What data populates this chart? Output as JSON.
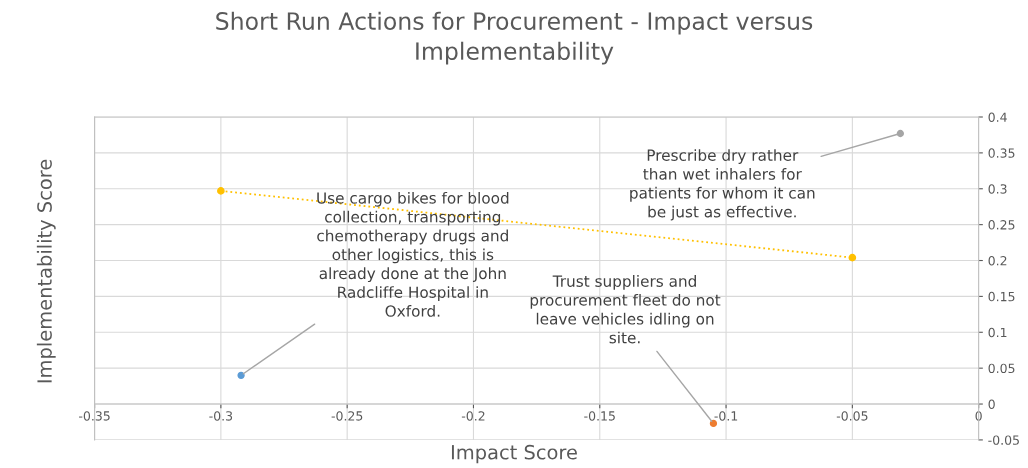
{
  "chart_data": {
    "type": "scatter",
    "title": "Short Run Actions for Procurement - Impact versus Implementability",
    "xlabel": "Impact Score",
    "ylabel": "Implementability Score",
    "series": [
      {
        "color": "#5b9bd5",
        "x": [
          -0.292
        ],
        "values": [
          0.04
        ]
      },
      {
        "color": "#ed7d31",
        "x": [
          -0.105
        ],
        "values": [
          -0.027
        ]
      },
      {
        "color": "#a5a5a5",
        "x": [
          -0.031
        ],
        "values": [
          0.377
        ]
      },
      {
        "type": "line",
        "color": "#ffc000",
        "x": [
          -0.3,
          -0.05
        ],
        "values": [
          0.297,
          0.204
        ],
        "line_style": "dotted"
      }
    ],
    "annotations": [
      {
        "text": "Use cargo bikes for blood collection, transporting chemotherapy drugs and other logistics, this is already done at the John Radcliffe Hospital in Oxford.",
        "x": -0.292,
        "y": 0.04
      },
      {
        "text": "Trust suppliers and procurement fleet do not leave vehicles idling on site.",
        "x": -0.105,
        "y": -0.027
      },
      {
        "text": "Prescribe dry rather than wet inhalers for patients for whom it can be just as effective.",
        "x": -0.031,
        "y": 0.377
      }
    ],
    "xlim": [
      -0.35,
      0
    ],
    "xticks": [
      -0.35,
      -0.3,
      -0.25,
      -0.2,
      -0.15,
      -0.1,
      -0.05,
      0
    ],
    "ylim": [
      -0.05,
      0.4
    ],
    "yticks": [
      -0.05,
      0,
      0.05,
      0.1,
      0.15,
      0.2,
      0.25,
      0.3,
      0.35,
      0.4
    ],
    "grid": true,
    "marker": "circle"
  }
}
